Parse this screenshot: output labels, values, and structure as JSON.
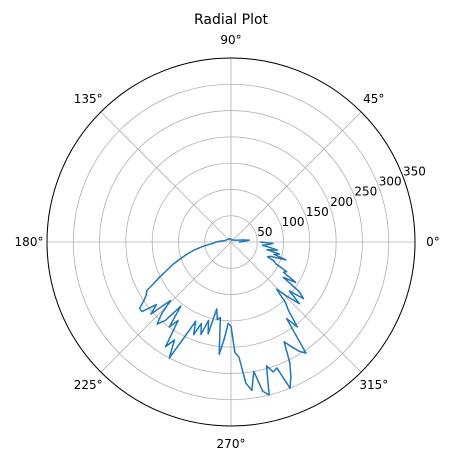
{
  "chart_data": {
    "type": "line",
    "title": "Radial Plot",
    "projection": "polar",
    "grid": true,
    "angle_ticks": [
      {
        "deg": 0,
        "label": "0°"
      },
      {
        "deg": 45,
        "label": "45°"
      },
      {
        "deg": 90,
        "label": "90°"
      },
      {
        "deg": 135,
        "label": "135°"
      },
      {
        "deg": 180,
        "label": "180°"
      },
      {
        "deg": 225,
        "label": "225°"
      },
      {
        "deg": 270,
        "label": "270°"
      },
      {
        "deg": 315,
        "label": "315°"
      }
    ],
    "radial_ticks": [
      {
        "value": 50,
        "label": "50"
      },
      {
        "value": 100,
        "label": "100"
      },
      {
        "value": 150,
        "label": "150"
      },
      {
        "value": 200,
        "label": "200"
      },
      {
        "value": 250,
        "label": "250"
      },
      {
        "value": 300,
        "label": "300"
      },
      {
        "value": 350,
        "label": "350"
      }
    ],
    "rlim": [
      0,
      350
    ],
    "line_color": "#1f77b4",
    "series": [
      {
        "theta_deg": [
          0,
          1,
          2,
          3,
          4,
          5,
          6,
          7,
          8,
          9,
          10,
          20,
          30,
          40,
          60,
          80,
          90,
          100,
          120,
          140,
          160,
          170,
          175,
          180,
          183,
          186,
          189,
          192,
          195,
          198,
          201,
          204,
          206,
          208,
          210,
          212,
          214,
          216,
          218,
          220,
          222,
          224,
          226,
          228,
          230,
          232,
          234,
          236,
          238,
          240,
          242,
          244,
          246,
          248,
          250,
          252,
          254,
          256,
          258,
          260,
          262,
          264,
          266,
          268,
          270,
          272,
          274,
          276,
          278,
          280,
          282,
          284,
          286,
          288,
          290,
          292,
          294,
          296,
          298,
          300,
          302,
          304,
          306,
          308,
          310,
          312,
          314,
          316,
          318,
          320,
          322,
          324,
          326,
          328,
          330,
          332,
          334,
          336,
          338,
          340,
          342,
          344,
          346,
          348,
          350,
          352,
          354,
          356,
          358,
          360
        ],
        "r": [
          15,
          18,
          22,
          25,
          28,
          32,
          35,
          30,
          28,
          25,
          22,
          10,
          7,
          6,
          5,
          4,
          5,
          6,
          7,
          8,
          10,
          14,
          20,
          28,
          32,
          40,
          55,
          70,
          85,
          100,
          118,
          135,
          150,
          165,
          185,
          190,
          200,
          215,
          215,
          185,
          205,
          160,
          190,
          210,
          195,
          155,
          200,
          180,
          235,
          215,
          250,
          200,
          165,
          190,
          165,
          185,
          155,
          180,
          130,
          150,
          145,
          215,
          185,
          155,
          160,
          210,
          220,
          270,
          285,
          250,
          290,
          300,
          245,
          260,
          255,
          300,
          280,
          255,
          215,
          230,
          245,
          255,
          180,
          205,
          170,
          155,
          125,
          150,
          175,
          145,
          175,
          160,
          120,
          145,
          115,
          120,
          95,
          90,
          75,
          80,
          110,
          85,
          95,
          70,
          90,
          75,
          60,
          70,
          80,
          55
        ]
      }
    ]
  }
}
